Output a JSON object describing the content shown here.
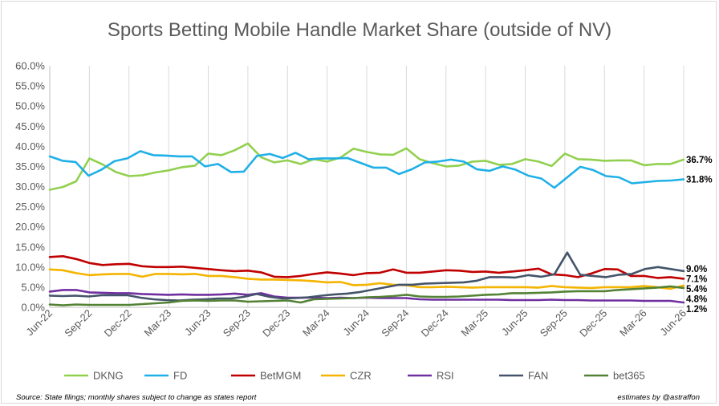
{
  "chart_data": {
    "type": "line",
    "title": "Sports Betting Mobile Handle Market Share (outside of NV)",
    "xlabel": "",
    "ylabel": "",
    "ylim": [
      0,
      60
    ],
    "y_ticks": [
      "0.0%",
      "5.0%",
      "10.0%",
      "15.0%",
      "20.0%",
      "25.0%",
      "30.0%",
      "35.0%",
      "40.0%",
      "45.0%",
      "50.0%",
      "55.0%",
      "60.0%"
    ],
    "x_ticks": [
      "Jun-22",
      "Sep-22",
      "Dec-22",
      "Mar-23",
      "Jun-23",
      "Sep-23",
      "Dec-23",
      "Mar-24",
      "Jun-24",
      "Sep-24",
      "Dec-24",
      "Mar-25",
      "Jun-25",
      "Sep-25",
      "Dec-25",
      "Mar-26",
      "Jun-26"
    ],
    "grid": "vertical",
    "legend": "bottom",
    "series": [
      {
        "name": "DKNG",
        "color": "#92d050",
        "end_label": "36.7%",
        "values": [
          29.2,
          29.9,
          31.3,
          37.0,
          35.5,
          33.6,
          32.6,
          32.8,
          33.5,
          34.0,
          34.8,
          35.2,
          38.2,
          37.8,
          39.0,
          40.7,
          37.3,
          36.0,
          36.5,
          35.6,
          36.8,
          36.2,
          37.2,
          39.4,
          38.6,
          38.0,
          37.9,
          39.5,
          36.8,
          35.8,
          35.0,
          35.2,
          36.2,
          36.4,
          35.4,
          35.6,
          36.8,
          36.2,
          35.1,
          38.2,
          36.8,
          36.7,
          36.4,
          36.5,
          36.5,
          35.3,
          35.6,
          35.6,
          36.7
        ]
      },
      {
        "name": "FD",
        "color": "#1fb0e8",
        "end_label": "31.8%",
        "values": [
          37.5,
          36.4,
          36.1,
          32.7,
          34.2,
          36.3,
          37.0,
          38.8,
          37.8,
          37.7,
          37.5,
          37.5,
          35.0,
          35.6,
          33.6,
          33.7,
          37.6,
          38.1,
          37.1,
          38.4,
          36.8,
          37.0,
          37.0,
          37.1,
          35.9,
          34.7,
          34.7,
          33.1,
          34.3,
          36.0,
          36.2,
          36.7,
          36.2,
          34.3,
          33.9,
          35.0,
          34.2,
          32.7,
          32.0,
          29.7,
          32.3,
          34.9,
          34.1,
          32.6,
          32.3,
          30.8,
          31.1,
          31.4,
          31.5,
          31.8
        ]
      },
      {
        "name": "BetMGM",
        "color": "#c00000",
        "end_label": "7.1%",
        "values": [
          12.5,
          12.7,
          12.0,
          11.0,
          10.5,
          10.7,
          10.8,
          10.2,
          10.0,
          10.0,
          10.1,
          9.8,
          9.5,
          9.2,
          9.0,
          9.1,
          8.7,
          7.6,
          7.5,
          7.8,
          8.3,
          8.7,
          8.4,
          8.0,
          8.5,
          8.6,
          9.4,
          8.6,
          8.6,
          8.9,
          9.2,
          9.1,
          8.8,
          8.9,
          8.6,
          8.9,
          9.2,
          9.6,
          8.2,
          8.0,
          7.5,
          8.4,
          9.5,
          9.4,
          7.8,
          7.8,
          7.3,
          7.5,
          7.1
        ]
      },
      {
        "name": "CZR",
        "color": "#f4b400",
        "end_label": "5.4%",
        "values": [
          9.4,
          9.2,
          8.5,
          8.0,
          8.2,
          8.3,
          8.3,
          7.6,
          8.3,
          8.3,
          8.2,
          8.3,
          7.8,
          7.8,
          7.5,
          7.1,
          6.9,
          6.9,
          6.8,
          6.7,
          6.5,
          6.2,
          6.3,
          5.5,
          5.6,
          6.0,
          5.6,
          5.5,
          5.0,
          5.0,
          5.1,
          5.0,
          4.9,
          5.0,
          5.0,
          5.0,
          5.0,
          4.9,
          5.3,
          5.0,
          4.9,
          4.8,
          5.0,
          5.0,
          5.0,
          5.3,
          5.0,
          4.6,
          5.4
        ]
      },
      {
        "name": "RSI",
        "color": "#7030a0",
        "end_label": "1.2%",
        "values": [
          3.9,
          4.3,
          4.3,
          3.7,
          3.6,
          3.5,
          3.5,
          3.3,
          3.2,
          3.1,
          3.2,
          3.1,
          3.1,
          3.2,
          3.4,
          3.1,
          3.5,
          2.7,
          2.4,
          2.4,
          2.4,
          2.3,
          2.4,
          2.3,
          2.4,
          2.3,
          2.3,
          2.3,
          2.0,
          1.9,
          1.9,
          1.9,
          1.9,
          1.9,
          1.9,
          1.8,
          1.8,
          1.8,
          1.9,
          1.8,
          1.8,
          1.7,
          1.7,
          1.7,
          1.7,
          1.6,
          1.6,
          1.6,
          1.2
        ]
      },
      {
        "name": "FAN",
        "color": "#44546a",
        "end_label": "9.0%",
        "values": [
          2.9,
          2.8,
          2.9,
          2.7,
          3.0,
          3.0,
          3.0,
          2.4,
          2.0,
          1.8,
          1.7,
          1.9,
          2.0,
          2.2,
          2.2,
          2.6,
          3.3,
          2.6,
          2.2,
          2.3,
          2.5,
          2.9,
          3.2,
          3.4,
          3.8,
          4.4,
          5.0,
          5.6,
          5.6,
          5.9,
          6.0,
          6.1,
          6.2,
          6.6,
          7.5,
          7.5,
          7.4,
          8.0,
          7.6,
          8.2,
          13.6,
          8.1,
          7.8,
          7.5,
          8.1,
          8.3,
          9.5,
          10.0,
          9.5,
          9.0
        ]
      },
      {
        "name": "bet365",
        "color": "#548235",
        "end_label": "4.8%",
        "values": [
          0.7,
          0.5,
          0.7,
          0.6,
          0.6,
          0.6,
          0.6,
          0.8,
          1.0,
          1.2,
          1.6,
          1.7,
          1.6,
          1.7,
          1.7,
          1.4,
          1.5,
          1.6,
          1.7,
          1.2,
          2.0,
          2.1,
          2.2,
          2.3,
          2.5,
          2.6,
          2.8,
          3.1,
          2.7,
          2.6,
          2.6,
          2.7,
          2.9,
          3.1,
          3.2,
          3.5,
          3.5,
          3.6,
          3.7,
          3.9,
          4.0,
          4.0,
          4.0,
          4.3,
          4.5,
          4.7,
          4.9,
          5.2,
          4.8
        ]
      }
    ]
  },
  "footer": {
    "source": "Source: State filings; monthly shares subject to change as states report",
    "credit": "estimates by @astraffon"
  }
}
